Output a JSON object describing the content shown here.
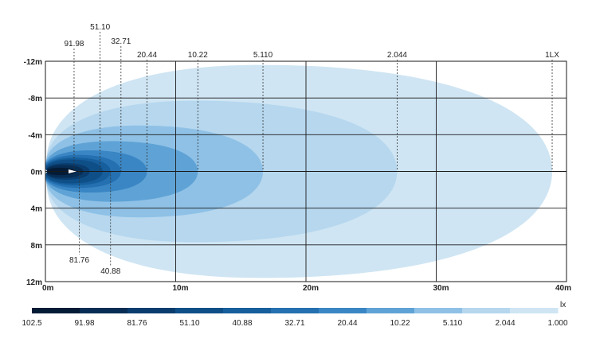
{
  "chart_data": {
    "type": "contour",
    "unit_label": "lx",
    "x_axis": {
      "range_m": [
        0,
        40
      ],
      "ticks": [
        {
          "value": 0,
          "label": "0m"
        },
        {
          "value": 10,
          "label": "10m"
        },
        {
          "value": 20,
          "label": "20m"
        },
        {
          "value": 30,
          "label": "30m"
        },
        {
          "value": 40,
          "label": "40m"
        }
      ]
    },
    "y_axis": {
      "range_m": [
        -12,
        12
      ],
      "ticks": [
        {
          "value": -12,
          "label": "-12m"
        },
        {
          "value": -8,
          "label": "-8m"
        },
        {
          "value": -4,
          "label": "-4m"
        },
        {
          "value": 0,
          "label": "0m"
        },
        {
          "value": 4,
          "label": "4m"
        },
        {
          "value": 8,
          "label": "8m"
        },
        {
          "value": 12,
          "label": "12m"
        }
      ]
    },
    "grid": true,
    "contours": [
      {
        "lux": "1.000",
        "reach_m": 38.9,
        "half_width_m": 11.6,
        "color": "#cfe5f3",
        "label": null
      },
      {
        "lux": "2.044",
        "reach_m": 27.0,
        "half_width_m": 7.7,
        "color": "#b6d7ee",
        "label": "2.044"
      },
      {
        "lux": "5.110",
        "reach_m": 16.7,
        "half_width_m": 5.0,
        "color": "#8fc1e6",
        "label": "5.110"
      },
      {
        "lux": "10.22",
        "reach_m": 11.7,
        "half_width_m": 3.3,
        "color": "#5fa3d6",
        "label": "10.22"
      },
      {
        "lux": "20.44",
        "reach_m": 7.8,
        "half_width_m": 2.3,
        "color": "#3a86c4",
        "label": "20.44"
      },
      {
        "lux": "32.71",
        "reach_m": 5.8,
        "half_width_m": 1.8,
        "color": "#2470b0",
        "label": "32.71"
      },
      {
        "lux": "40.88",
        "reach_m": 5.0,
        "half_width_m": 1.5,
        "color": "#165e9c",
        "label": "40.88"
      },
      {
        "lux": "51.10",
        "reach_m": 4.4,
        "half_width_m": 1.3,
        "color": "#0f4f88",
        "label": "51.10"
      },
      {
        "lux": "81.76",
        "reach_m": 3.4,
        "half_width_m": 0.9,
        "color": "#0a3d6e",
        "label": "81.76"
      },
      {
        "lux": "91.98",
        "reach_m": 2.9,
        "half_width_m": 0.7,
        "color": "#072d54",
        "label": "91.98"
      },
      {
        "lux": "102.5",
        "reach_m": 2.3,
        "half_width_m": 0.4,
        "color": "#041b36",
        "label": null
      }
    ],
    "top_labels": [
      {
        "text": "91.98",
        "x_m": 2.2
      },
      {
        "text": "51.10",
        "x_m": 4.2
      },
      {
        "text": "32.71",
        "x_m": 5.8
      },
      {
        "text": "20.44",
        "x_m": 7.8
      },
      {
        "text": "10.22",
        "x_m": 11.7
      },
      {
        "text": "5.110",
        "x_m": 16.7
      },
      {
        "text": "2.044",
        "x_m": 27.0
      },
      {
        "text": "1LX",
        "x_m": 38.9
      }
    ],
    "bottom_labels": [
      {
        "text": "81.76",
        "x_m": 2.6
      },
      {
        "text": "40.88",
        "x_m": 5.0
      }
    ],
    "legend": {
      "colors": [
        "#041b36",
        "#072d54",
        "#0a3d6e",
        "#0f4f88",
        "#165e9c",
        "#2470b0",
        "#3a86c4",
        "#5fa3d6",
        "#8fc1e6",
        "#b6d7ee",
        "#cfe5f3"
      ],
      "labels": [
        "102.5",
        "91.98",
        "81.76",
        "51.10",
        "40.88",
        "32.71",
        "20.44",
        "10.22",
        "5.110",
        "2.044",
        "1.000"
      ],
      "unit": "lx"
    }
  }
}
